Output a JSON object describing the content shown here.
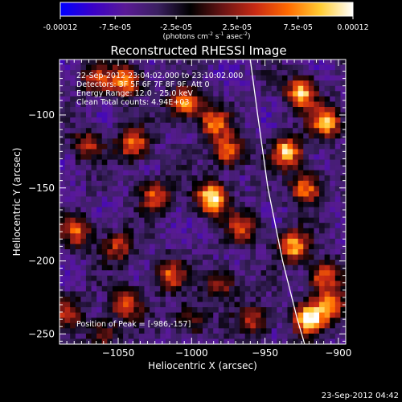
{
  "colorbar": {
    "tick_labels": [
      "-0.00012",
      "-7.5e-05",
      "-2.5e-05",
      "2.5e-05",
      "7.5e-05",
      "0.00012"
    ],
    "tick_values": [
      -0.00012,
      -7.5e-05,
      -2.5e-05,
      2.5e-05,
      7.5e-05,
      0.00012
    ],
    "unit_label": "(photons cm",
    "unit_exp1": "-2",
    "unit_mid": " s",
    "unit_exp2": "-1",
    "unit_end": " asec",
    "unit_exp3": "-2",
    "unit_close": ")",
    "range": [
      -0.00012,
      0.00012
    ],
    "colors": [
      "#0000ff",
      "#3a00c8",
      "#5a1a96",
      "#3a2060",
      "#000000",
      "#6a1414",
      "#c82a14",
      "#ff6a00",
      "#ffcc33",
      "#ffffff"
    ]
  },
  "chart_data": {
    "type": "heatmap",
    "title": "Reconstructed RHESSI Image",
    "xlabel": "Heliocentric X (arcsec)",
    "ylabel": "Heliocentric Y (arcsec)",
    "xlim": [
      -1090,
      -895
    ],
    "ylim": [
      -257,
      -62
    ],
    "x_ticks": [
      -1050,
      -1000,
      -950,
      -900
    ],
    "x_tick_labels": [
      "−1050",
      "−1000",
      "−950",
      "−900"
    ],
    "y_ticks": [
      -100,
      -150,
      -200,
      -250
    ],
    "y_tick_labels": [
      "−100",
      "−150",
      "−200",
      "−250"
    ],
    "annotations": [
      "22-Sep-2012 23:04:02.000 to 23:10:02.000",
      "Detectors: 3F 5F 6F 7F 8F 9F, Att 0",
      "Energy Range: 12.0 - 25.0 keV",
      "Clean     Total counts: 4.94E+03"
    ],
    "peak_label": "Position of Peak = [-986,-157]",
    "peak": [
      -986,
      -157
    ],
    "limb": [
      [
        -960,
        -62
      ],
      [
        -955,
        -100
      ],
      [
        -948,
        -150
      ],
      [
        -938,
        -200
      ],
      [
        -928,
        -240
      ],
      [
        -923,
        -257
      ]
    ],
    "hot_spots": [
      {
        "x": -986,
        "y": -157,
        "v": 1.0
      },
      {
        "x": -1045,
        "y": -77,
        "v": 0.75
      },
      {
        "x": -1005,
        "y": -92,
        "v": 0.75
      },
      {
        "x": -985,
        "y": -105,
        "v": 0.65
      },
      {
        "x": -1040,
        "y": -120,
        "v": 0.7
      },
      {
        "x": -975,
        "y": -125,
        "v": 0.7
      },
      {
        "x": -1025,
        "y": -155,
        "v": 0.6
      },
      {
        "x": -1070,
        "y": -120,
        "v": 0.5
      },
      {
        "x": -1078,
        "y": -180,
        "v": 0.6
      },
      {
        "x": -1050,
        "y": -190,
        "v": 0.5
      },
      {
        "x": -1015,
        "y": -210,
        "v": 0.6
      },
      {
        "x": -980,
        "y": -215,
        "v": 0.5
      },
      {
        "x": -1045,
        "y": -230,
        "v": 0.6
      },
      {
        "x": -1085,
        "y": -235,
        "v": 0.5
      },
      {
        "x": -1060,
        "y": -250,
        "v": 0.4
      },
      {
        "x": -965,
        "y": -178,
        "v": 0.55
      },
      {
        "x": -958,
        "y": -240,
        "v": 0.55
      },
      {
        "x": -925,
        "y": -85,
        "v": 0.85
      },
      {
        "x": -908,
        "y": -105,
        "v": 0.8
      },
      {
        "x": -935,
        "y": -125,
        "v": 0.85
      },
      {
        "x": -922,
        "y": -150,
        "v": 0.7
      },
      {
        "x": -930,
        "y": -190,
        "v": 0.8
      },
      {
        "x": -910,
        "y": -210,
        "v": 0.65
      },
      {
        "x": -920,
        "y": -240,
        "v": 0.95
      },
      {
        "x": -905,
        "y": -230,
        "v": 0.7
      },
      {
        "x": -1000,
        "y": -240,
        "v": 0.45
      },
      {
        "x": -1065,
        "y": -75,
        "v": 0.45
      }
    ]
  },
  "footer": {
    "timestamp": "23-Sep-2012 04:42"
  }
}
